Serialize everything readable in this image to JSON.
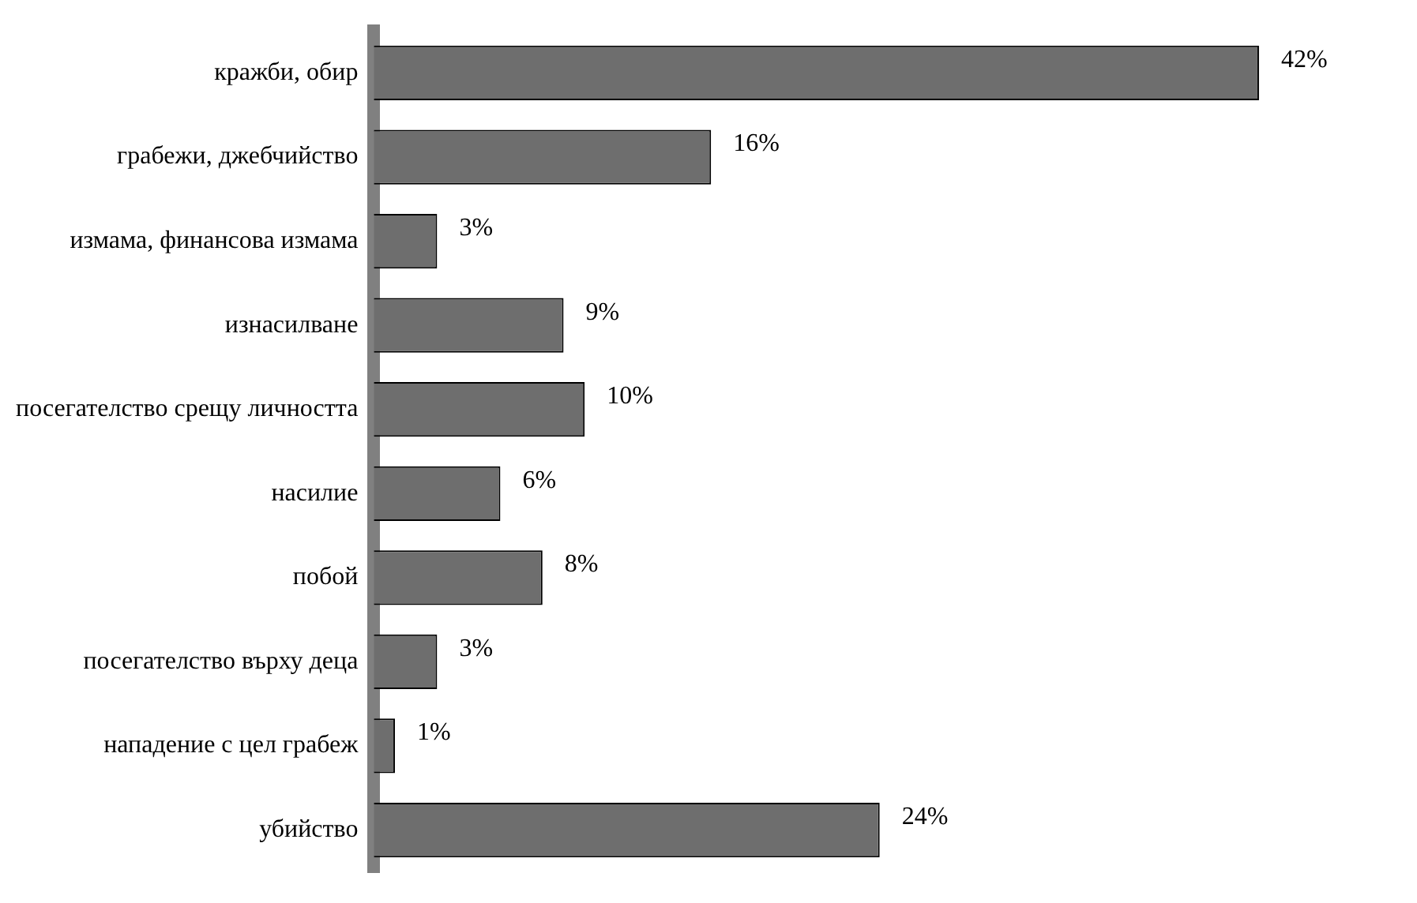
{
  "chart_data": {
    "type": "bar",
    "orientation": "horizontal",
    "categories": [
      "кражби, обир",
      "грабежи, джебчийство",
      "измама, финансова измама",
      "изнасилване",
      "посегателство срещу личността",
      "насилие",
      "побой",
      "посегателство върху деца",
      "нападение с цел грабеж",
      "убийство"
    ],
    "values": [
      42,
      16,
      3,
      9,
      10,
      6,
      8,
      3,
      1,
      24
    ],
    "value_labels": [
      "42%",
      "16%",
      "3%",
      "9%",
      "10%",
      "6%",
      "8%",
      "3%",
      "1%",
      "24%"
    ],
    "color": "#6e6e6e",
    "legend": false
  }
}
